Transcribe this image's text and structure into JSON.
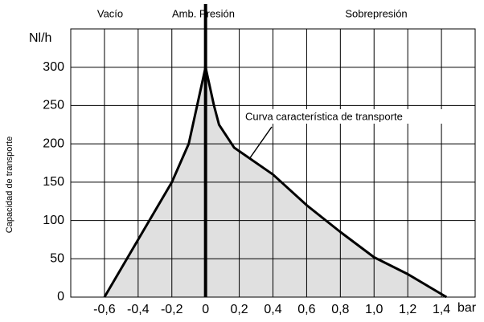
{
  "chart_data": {
    "type": "area",
    "region_labels": [
      "Vacío",
      "Amb. Presión",
      "Sobrepresión"
    ],
    "y_unit": "Nl/h",
    "x_unit": "bar",
    "ylabel": "Capacidad de transporte",
    "annotation": "Curva característica de transporte",
    "x": [
      -0.6,
      -0.4,
      -0.2,
      -0.1,
      0,
      0.05,
      0.08,
      0.17,
      0.4,
      0.6,
      0.8,
      1.0,
      1.2,
      1.43
    ],
    "series": [
      {
        "name": "Curva característica de transporte",
        "color": "#000000",
        "fill": "#e0e0e0",
        "values": [
          0,
          75,
          150,
          200,
          300,
          250,
          225,
          195,
          160,
          120,
          85,
          52,
          30,
          0
        ]
      }
    ],
    "xlim": [
      -0.8,
      1.6
    ],
    "ylim": [
      0,
      350
    ],
    "xticks": [
      {
        "value": -0.6,
        "label": "-0,6"
      },
      {
        "value": -0.4,
        "label": "-0,4"
      },
      {
        "value": -0.2,
        "label": "-0,2"
      },
      0,
      {
        "value": 0.2,
        "label": "0,2"
      },
      {
        "value": 0.4,
        "label": "0,4"
      },
      {
        "value": 0.6,
        "label": "0,6"
      },
      {
        "value": 0.8,
        "label": "0,8"
      },
      {
        "value": 1.0,
        "label": "1,0"
      },
      {
        "value": 1.2,
        "label": "1,2"
      },
      {
        "value": 1.4,
        "label": "1,4"
      }
    ],
    "yticks": [
      0,
      50,
      100,
      150,
      200,
      250,
      300
    ],
    "grid": true
  }
}
